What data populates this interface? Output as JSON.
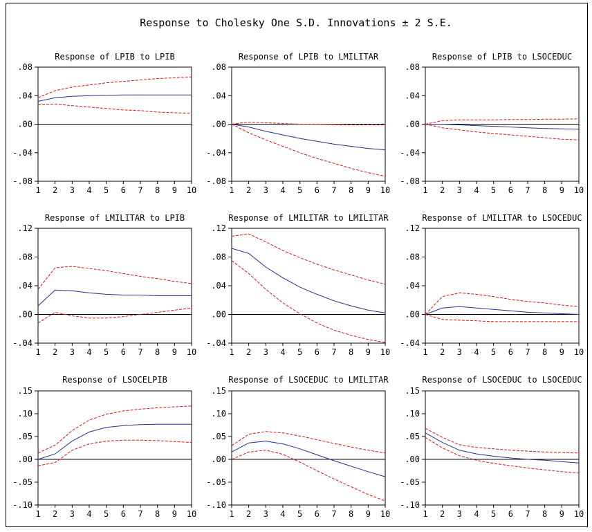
{
  "title": "Response to Cholesky One S.D. Innovations ± 2 S.E.",
  "colors": {
    "response": "#1f2f8f",
    "band": "#e01010",
    "axis": "#000000",
    "zero": "#000000"
  },
  "x_ticks": [
    "1",
    "2",
    "3",
    "4",
    "5",
    "6",
    "7",
    "8",
    "9",
    "10"
  ],
  "chart_data": [
    {
      "type": "line",
      "title": "Response of LPIB to LPIB",
      "x": [
        1,
        2,
        3,
        4,
        5,
        6,
        7,
        8,
        9,
        10
      ],
      "ylim": [
        -0.08,
        0.08
      ],
      "y_ticks": [
        {
          "v": 0.08,
          "label": ".08"
        },
        {
          "v": 0.04,
          "label": ".04"
        },
        {
          "v": 0.0,
          "label": ".00"
        },
        {
          "v": -0.04,
          "label": "-.04"
        },
        {
          "v": -0.08,
          "label": "-.08"
        }
      ],
      "series": [
        {
          "role": "response",
          "values": [
            0.032,
            0.037,
            0.039,
            0.04,
            0.0405,
            0.041,
            0.041,
            0.041,
            0.041,
            0.041
          ]
        },
        {
          "role": "upper",
          "values": [
            0.037,
            0.047,
            0.052,
            0.055,
            0.058,
            0.06,
            0.062,
            0.064,
            0.065,
            0.066
          ]
        },
        {
          "role": "lower",
          "values": [
            0.027,
            0.028,
            0.026,
            0.024,
            0.022,
            0.02,
            0.019,
            0.017,
            0.016,
            0.015
          ]
        }
      ]
    },
    {
      "type": "line",
      "title": "Response of LPIB to LMILITAR",
      "x": [
        1,
        2,
        3,
        4,
        5,
        6,
        7,
        8,
        9,
        10
      ],
      "ylim": [
        -0.08,
        0.08
      ],
      "y_ticks": [
        {
          "v": 0.08,
          "label": ".08"
        },
        {
          "v": 0.04,
          "label": ".04"
        },
        {
          "v": 0.0,
          "label": ".00"
        },
        {
          "v": -0.04,
          "label": "-.04"
        },
        {
          "v": -0.08,
          "label": "-.08"
        }
      ],
      "series": [
        {
          "role": "response",
          "values": [
            0.0,
            -0.004,
            -0.01,
            -0.015,
            -0.02,
            -0.024,
            -0.028,
            -0.031,
            -0.034,
            -0.036
          ]
        },
        {
          "role": "upper",
          "values": [
            0.0,
            0.003,
            0.002,
            0.001,
            0.0,
            0.0,
            -0.0005,
            -0.001,
            -0.001,
            -0.001
          ]
        },
        {
          "role": "lower",
          "values": [
            0.0,
            -0.012,
            -0.022,
            -0.031,
            -0.04,
            -0.048,
            -0.055,
            -0.062,
            -0.068,
            -0.073
          ]
        }
      ]
    },
    {
      "type": "line",
      "title": "Response of LPIB to LSOCEDUC",
      "x": [
        1,
        2,
        3,
        4,
        5,
        6,
        7,
        8,
        9,
        10
      ],
      "ylim": [
        -0.08,
        0.08
      ],
      "y_ticks": [
        {
          "v": 0.08,
          "label": ".08"
        },
        {
          "v": 0.04,
          "label": ".04"
        },
        {
          "v": 0.0,
          "label": ".00"
        },
        {
          "v": -0.04,
          "label": "-.04"
        },
        {
          "v": -0.08,
          "label": "-.08"
        }
      ],
      "series": [
        {
          "role": "response",
          "values": [
            0.0,
            0.0,
            -0.001,
            -0.002,
            -0.003,
            -0.004,
            -0.005,
            -0.006,
            -0.0065,
            -0.007
          ]
        },
        {
          "role": "upper",
          "values": [
            0.0,
            0.005,
            0.006,
            0.006,
            0.006,
            0.0065,
            0.0065,
            0.007,
            0.007,
            0.0075
          ]
        },
        {
          "role": "lower",
          "values": [
            0.0,
            -0.005,
            -0.008,
            -0.011,
            -0.013,
            -0.015,
            -0.017,
            -0.019,
            -0.021,
            -0.022
          ]
        }
      ]
    },
    {
      "type": "line",
      "title": "Response of LMILITAR to LPIB",
      "x": [
        1,
        2,
        3,
        4,
        5,
        6,
        7,
        8,
        9,
        10
      ],
      "ylim": [
        -0.04,
        0.12
      ],
      "y_ticks": [
        {
          "v": 0.12,
          "label": ".12"
        },
        {
          "v": 0.08,
          "label": ".08"
        },
        {
          "v": 0.04,
          "label": ".04"
        },
        {
          "v": 0.0,
          "label": ".00"
        },
        {
          "v": -0.04,
          "label": "-.04"
        }
      ],
      "series": [
        {
          "role": "response",
          "values": [
            0.012,
            0.034,
            0.033,
            0.03,
            0.028,
            0.027,
            0.027,
            0.026,
            0.026,
            0.026
          ]
        },
        {
          "role": "upper",
          "values": [
            0.035,
            0.065,
            0.067,
            0.064,
            0.061,
            0.057,
            0.053,
            0.05,
            0.046,
            0.043
          ]
        },
        {
          "role": "lower",
          "values": [
            -0.012,
            0.003,
            -0.002,
            -0.005,
            -0.005,
            -0.003,
            0.0,
            0.003,
            0.006,
            0.009
          ]
        }
      ]
    },
    {
      "type": "line",
      "title": "Response of LMILITAR to LMILITAR",
      "x": [
        1,
        2,
        3,
        4,
        5,
        6,
        7,
        8,
        9,
        10
      ],
      "ylim": [
        -0.04,
        0.12
      ],
      "y_ticks": [
        {
          "v": 0.12,
          "label": ".12"
        },
        {
          "v": 0.08,
          "label": ".08"
        },
        {
          "v": 0.04,
          "label": ".04"
        },
        {
          "v": 0.0,
          "label": ".00"
        },
        {
          "v": -0.04,
          "label": "-.04"
        }
      ],
      "series": [
        {
          "role": "response",
          "values": [
            0.092,
            0.085,
            0.066,
            0.051,
            0.038,
            0.028,
            0.019,
            0.012,
            0.006,
            0.002
          ]
        },
        {
          "role": "upper",
          "values": [
            0.109,
            0.112,
            0.101,
            0.089,
            0.079,
            0.07,
            0.062,
            0.055,
            0.048,
            0.042
          ]
        },
        {
          "role": "lower",
          "values": [
            0.075,
            0.057,
            0.035,
            0.016,
            0.001,
            -0.012,
            -0.022,
            -0.029,
            -0.035,
            -0.039
          ]
        }
      ]
    },
    {
      "type": "line",
      "title": "Response of LMILITAR to LSOCEDUC",
      "x": [
        1,
        2,
        3,
        4,
        5,
        6,
        7,
        8,
        9,
        10
      ],
      "ylim": [
        -0.04,
        0.12
      ],
      "y_ticks": [
        {
          "v": 0.12,
          "label": ".12"
        },
        {
          "v": 0.08,
          "label": ".08"
        },
        {
          "v": 0.04,
          "label": ".04"
        },
        {
          "v": 0.0,
          "label": ".00"
        },
        {
          "v": -0.04,
          "label": "-.04"
        }
      ],
      "series": [
        {
          "role": "response",
          "values": [
            0.0,
            0.009,
            0.011,
            0.009,
            0.007,
            0.005,
            0.003,
            0.002,
            0.001,
            0.0
          ]
        },
        {
          "role": "upper",
          "values": [
            0.0,
            0.025,
            0.03,
            0.028,
            0.025,
            0.021,
            0.018,
            0.016,
            0.013,
            0.011
          ]
        },
        {
          "role": "lower",
          "values": [
            0.0,
            -0.007,
            -0.008,
            -0.009,
            -0.01,
            -0.01,
            -0.01,
            -0.01,
            -0.01,
            -0.01
          ]
        }
      ]
    },
    {
      "type": "line",
      "title": "Response of LSOCELPIB",
      "x": [
        1,
        2,
        3,
        4,
        5,
        6,
        7,
        8,
        9,
        10
      ],
      "ylim": [
        -0.1,
        0.15
      ],
      "y_ticks": [
        {
          "v": 0.15,
          "label": ".15"
        },
        {
          "v": 0.1,
          "label": ".10"
        },
        {
          "v": 0.05,
          "label": ".05"
        },
        {
          "v": 0.0,
          "label": ".00"
        },
        {
          "v": -0.05,
          "label": "-.05"
        },
        {
          "v": -0.1,
          "label": "-.10"
        }
      ],
      "series": [
        {
          "role": "response",
          "values": [
            0.0,
            0.012,
            0.04,
            0.06,
            0.07,
            0.074,
            0.076,
            0.077,
            0.077,
            0.077
          ]
        },
        {
          "role": "upper",
          "values": [
            0.014,
            0.031,
            0.063,
            0.086,
            0.099,
            0.106,
            0.11,
            0.113,
            0.115,
            0.117
          ]
        },
        {
          "role": "lower",
          "values": [
            -0.014,
            -0.007,
            0.02,
            0.034,
            0.04,
            0.042,
            0.042,
            0.041,
            0.039,
            0.037
          ]
        }
      ]
    },
    {
      "type": "line",
      "title": "Response of LSOCEDUC to LMILITAR",
      "x": [
        1,
        2,
        3,
        4,
        5,
        6,
        7,
        8,
        9,
        10
      ],
      "ylim": [
        -0.1,
        0.15
      ],
      "y_ticks": [
        {
          "v": 0.15,
          "label": ".15"
        },
        {
          "v": 0.1,
          "label": ".10"
        },
        {
          "v": 0.05,
          "label": ".05"
        },
        {
          "v": 0.0,
          "label": ".00"
        },
        {
          "v": -0.05,
          "label": "-.05"
        },
        {
          "v": -0.1,
          "label": "-.10"
        }
      ],
      "series": [
        {
          "role": "response",
          "values": [
            0.016,
            0.036,
            0.04,
            0.034,
            0.023,
            0.01,
            -0.003,
            -0.015,
            -0.027,
            -0.038
          ]
        },
        {
          "role": "upper",
          "values": [
            0.03,
            0.055,
            0.061,
            0.058,
            0.051,
            0.043,
            0.035,
            0.027,
            0.02,
            0.014
          ]
        },
        {
          "role": "lower",
          "values": [
            0.0,
            0.016,
            0.02,
            0.011,
            -0.006,
            -0.025,
            -0.043,
            -0.06,
            -0.077,
            -0.091
          ]
        }
      ]
    },
    {
      "type": "line",
      "title": "Response of LSOCEDUC to LSOCEDUC",
      "x": [
        1,
        2,
        3,
        4,
        5,
        6,
        7,
        8,
        9,
        10
      ],
      "ylim": [
        -0.1,
        0.15
      ],
      "y_ticks": [
        {
          "v": 0.15,
          "label": ".15"
        },
        {
          "v": 0.1,
          "label": ".10"
        },
        {
          "v": 0.05,
          "label": ".05"
        },
        {
          "v": 0.0,
          "label": ".00"
        },
        {
          "v": -0.05,
          "label": "-.05"
        },
        {
          "v": -0.1,
          "label": "-.10"
        }
      ],
      "series": [
        {
          "role": "response",
          "values": [
            0.058,
            0.037,
            0.02,
            0.012,
            0.007,
            0.003,
            0.0,
            -0.002,
            -0.005,
            -0.008
          ]
        },
        {
          "role": "upper",
          "values": [
            0.068,
            0.048,
            0.032,
            0.026,
            0.023,
            0.02,
            0.018,
            0.016,
            0.015,
            0.014
          ]
        },
        {
          "role": "lower",
          "values": [
            0.048,
            0.025,
            0.008,
            -0.002,
            -0.009,
            -0.014,
            -0.019,
            -0.023,
            -0.027,
            -0.03
          ]
        }
      ]
    }
  ]
}
